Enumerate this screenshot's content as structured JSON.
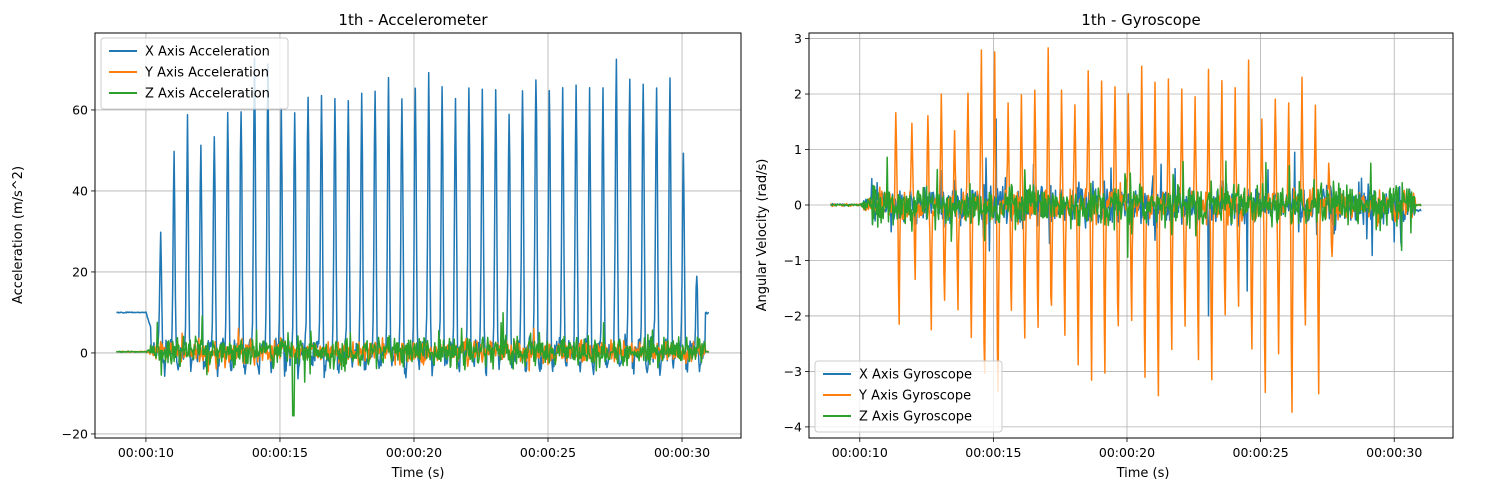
{
  "chart_data": [
    {
      "type": "line",
      "title": "1th - Accelerometer",
      "xlabel": "Time (s)",
      "ylabel": "Acceleration (m/s^2)",
      "xlim": [
        8.1,
        32.2
      ],
      "ylim": [
        -21,
        79
      ],
      "xticks": [
        10,
        15,
        20,
        25,
        30
      ],
      "xtick_labels": [
        "00:00:10",
        "00:00:15",
        "00:00:20",
        "00:00:25",
        "00:00:30"
      ],
      "yticks": [
        -20,
        0,
        20,
        40,
        60
      ],
      "ytick_labels": [
        "−20",
        "0",
        "20",
        "40",
        "60"
      ],
      "grid": true,
      "legend": "top-left",
      "x_start": 8.9,
      "x_end": 31.0,
      "peaks": [
        {
          "t": 10.55,
          "v": 25
        },
        {
          "t": 11.05,
          "v": 43
        },
        {
          "t": 11.55,
          "v": 51
        },
        {
          "t": 12.05,
          "v": 48
        },
        {
          "t": 12.55,
          "v": 49
        },
        {
          "t": 13.05,
          "v": 53
        },
        {
          "t": 13.55,
          "v": 56
        },
        {
          "t": 14.05,
          "v": 66
        },
        {
          "t": 14.55,
          "v": 65
        },
        {
          "t": 15.05,
          "v": 55
        },
        {
          "t": 15.55,
          "v": 56
        },
        {
          "t": 16.05,
          "v": 60
        },
        {
          "t": 16.55,
          "v": 58
        },
        {
          "t": 17.05,
          "v": 57
        },
        {
          "t": 17.55,
          "v": 59
        },
        {
          "t": 18.05,
          "v": 58
        },
        {
          "t": 18.55,
          "v": 60
        },
        {
          "t": 19.05,
          "v": 61
        },
        {
          "t": 19.55,
          "v": 58
        },
        {
          "t": 20.05,
          "v": 62
        },
        {
          "t": 20.55,
          "v": 63
        },
        {
          "t": 21.05,
          "v": 60
        },
        {
          "t": 21.55,
          "v": 59
        },
        {
          "t": 22.05,
          "v": 62
        },
        {
          "t": 22.55,
          "v": 60
        },
        {
          "t": 23.05,
          "v": 61
        },
        {
          "t": 23.55,
          "v": 57
        },
        {
          "t": 24.05,
          "v": 63
        },
        {
          "t": 24.55,
          "v": 66
        },
        {
          "t": 25.05,
          "v": 61
        },
        {
          "t": 25.55,
          "v": 60
        },
        {
          "t": 26.05,
          "v": 62
        },
        {
          "t": 26.55,
          "v": 60
        },
        {
          "t": 27.05,
          "v": 61
        },
        {
          "t": 27.55,
          "v": 67
        },
        {
          "t": 28.05,
          "v": 64
        },
        {
          "t": 28.55,
          "v": 62
        },
        {
          "t": 29.05,
          "v": 60
        },
        {
          "t": 29.55,
          "v": 62
        },
        {
          "t": 30.05,
          "v": 46
        },
        {
          "t": 30.55,
          "v": 13
        }
      ],
      "series": [
        {
          "name": "X Axis Acceleration",
          "color": "#1f77b4",
          "baseline": 10,
          "active_amp": 3,
          "min": -8
        },
        {
          "name": "Y Axis Acceleration",
          "color": "#ff7f0e",
          "baseline": 0.3,
          "active_amp": 2.5,
          "min": -10
        },
        {
          "name": "Z Axis Acceleration",
          "color": "#2ca02c",
          "baseline": 0.3,
          "active_amp": 3.5,
          "min": -16
        }
      ]
    },
    {
      "type": "line",
      "title": "1th - Gyroscope",
      "xlabel": "Time (s)",
      "ylabel": "Angular Velocity (rad/s)",
      "xlim": [
        8.1,
        32.2
      ],
      "ylim": [
        -4.2,
        3.1
      ],
      "xticks": [
        10,
        15,
        20,
        25,
        30
      ],
      "xtick_labels": [
        "00:00:10",
        "00:00:15",
        "00:00:20",
        "00:00:25",
        "00:00:30"
      ],
      "yticks": [
        -4,
        -3,
        -2,
        -1,
        0,
        1,
        2,
        3
      ],
      "ytick_labels": [
        "−4",
        "−3",
        "−2",
        "−1",
        "0",
        "1",
        "2",
        "3"
      ],
      "grid": true,
      "legend": "bottom-left",
      "x_start": 8.9,
      "x_end": 31.0,
      "y_peaks": [
        {
          "t": 11.35,
          "max": 1.85,
          "min": -2.1
        },
        {
          "t": 11.95,
          "max": 1.6,
          "min": -1.5
        },
        {
          "t": 12.55,
          "max": 1.6,
          "min": -2.3
        },
        {
          "t": 13.05,
          "max": 2.0,
          "min": -2.0
        },
        {
          "t": 13.55,
          "max": 1.5,
          "min": -1.8
        },
        {
          "t": 14.05,
          "max": 2.0,
          "min": -2.6
        },
        {
          "t": 14.55,
          "max": 2.75,
          "min": -3.3
        },
        {
          "t": 15.05,
          "max": 2.7,
          "min": -3.6
        },
        {
          "t": 15.55,
          "max": 1.8,
          "min": -2.0
        },
        {
          "t": 16.05,
          "max": 2.0,
          "min": -2.6
        },
        {
          "t": 16.55,
          "max": 2.2,
          "min": -2.4
        },
        {
          "t": 17.05,
          "max": 2.8,
          "min": -2.0
        },
        {
          "t": 17.55,
          "max": 2.1,
          "min": -2.5
        },
        {
          "t": 18.05,
          "max": 1.9,
          "min": -3.1
        },
        {
          "t": 18.55,
          "max": 2.4,
          "min": -3.2
        },
        {
          "t": 19.05,
          "max": 2.3,
          "min": -2.9
        },
        {
          "t": 19.55,
          "max": 2.3,
          "min": -2.2
        },
        {
          "t": 20.05,
          "max": 2.1,
          "min": -2.0
        },
        {
          "t": 20.55,
          "max": 2.4,
          "min": -3.2
        },
        {
          "t": 21.05,
          "max": 2.2,
          "min": -3.4
        },
        {
          "t": 21.55,
          "max": 2.0,
          "min": -2.6
        },
        {
          "t": 22.05,
          "max": 2.2,
          "min": -2.2
        },
        {
          "t": 22.55,
          "max": 2.0,
          "min": -2.8
        },
        {
          "t": 23.05,
          "max": 2.4,
          "min": -3.2
        },
        {
          "t": 23.55,
          "max": 2.4,
          "min": -2.0
        },
        {
          "t": 24.05,
          "max": 1.9,
          "min": -2.0
        },
        {
          "t": 24.55,
          "max": 2.5,
          "min": -3.0
        },
        {
          "t": 25.05,
          "max": 1.5,
          "min": -3.6
        },
        {
          "t": 25.55,
          "max": 2.0,
          "min": -2.6
        },
        {
          "t": 26.05,
          "max": 2.0,
          "min": -3.9
        },
        {
          "t": 26.55,
          "max": 2.35,
          "min": -2.1
        },
        {
          "t": 27.05,
          "max": 2.0,
          "min": -3.2
        },
        {
          "t": 27.55,
          "max": 0.8,
          "min": -1.0
        }
      ],
      "series": [
        {
          "name": "X Axis Gyroscope",
          "color": "#1f77b4",
          "amp": 0.35
        },
        {
          "name": "Y Axis Gyroscope",
          "color": "#ff7f0e",
          "amp": 0.3
        },
        {
          "name": "Z Axis Gyroscope",
          "color": "#2ca02c",
          "amp": 0.35
        }
      ]
    }
  ]
}
